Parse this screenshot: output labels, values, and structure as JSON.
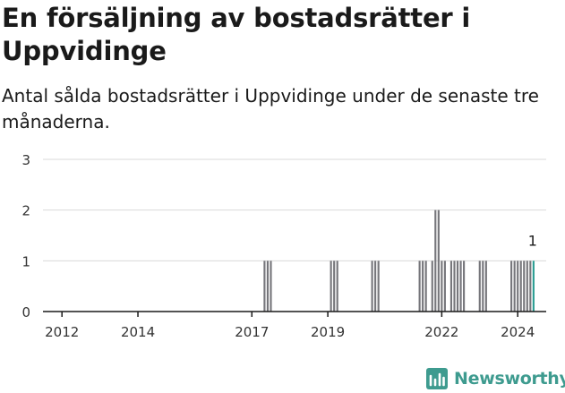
{
  "title": "En försäljning av bostadsrätter i Uppvidinge",
  "subtitle": "Antal sålda bostadsrätter i Uppvidinge under de senaste tre månaderna.",
  "brand": {
    "name": "Newsworthy",
    "logo_icon": "newsworthy-logo-icon",
    "color": "#3e9b8f"
  },
  "colors": {
    "bar": "#76767b",
    "highlight": "#2a9d92",
    "grid": "#d9d9d9",
    "axis": "#1a1a1a"
  },
  "chart_data": {
    "type": "bar",
    "title": "",
    "xlabel": "",
    "ylabel": "",
    "ylim": [
      0,
      3
    ],
    "yticks": [
      0,
      1,
      2,
      3
    ],
    "xlim": [
      "2011-07",
      "2024-10"
    ],
    "xticks": [
      "2012",
      "2014",
      "2017",
      "2019",
      "2022",
      "2024"
    ],
    "grid": true,
    "series": [
      {
        "x": [
          "2017-05",
          "2017-06",
          "2017-07",
          "2019-02",
          "2019-03",
          "2019-04",
          "2020-03",
          "2020-04",
          "2020-05",
          "2021-06",
          "2021-07",
          "2021-08",
          "2021-10",
          "2021-11",
          "2021-12",
          "2022-01",
          "2022-02",
          "2022-04",
          "2022-05",
          "2022-06",
          "2022-07",
          "2022-08",
          "2023-01",
          "2023-02",
          "2023-03",
          "2023-11",
          "2023-12",
          "2024-01",
          "2024-02",
          "2024-03",
          "2024-04",
          "2024-05",
          "2024-06"
        ],
        "values": [
          1,
          1,
          1,
          1,
          1,
          1,
          1,
          1,
          1,
          1,
          1,
          1,
          1,
          2,
          2,
          1,
          1,
          1,
          1,
          1,
          1,
          1,
          1,
          1,
          1,
          1,
          1,
          1,
          1,
          1,
          1,
          1,
          1
        ]
      }
    ],
    "highlight": {
      "x": "2024-06",
      "value": 1,
      "label": "1"
    }
  }
}
